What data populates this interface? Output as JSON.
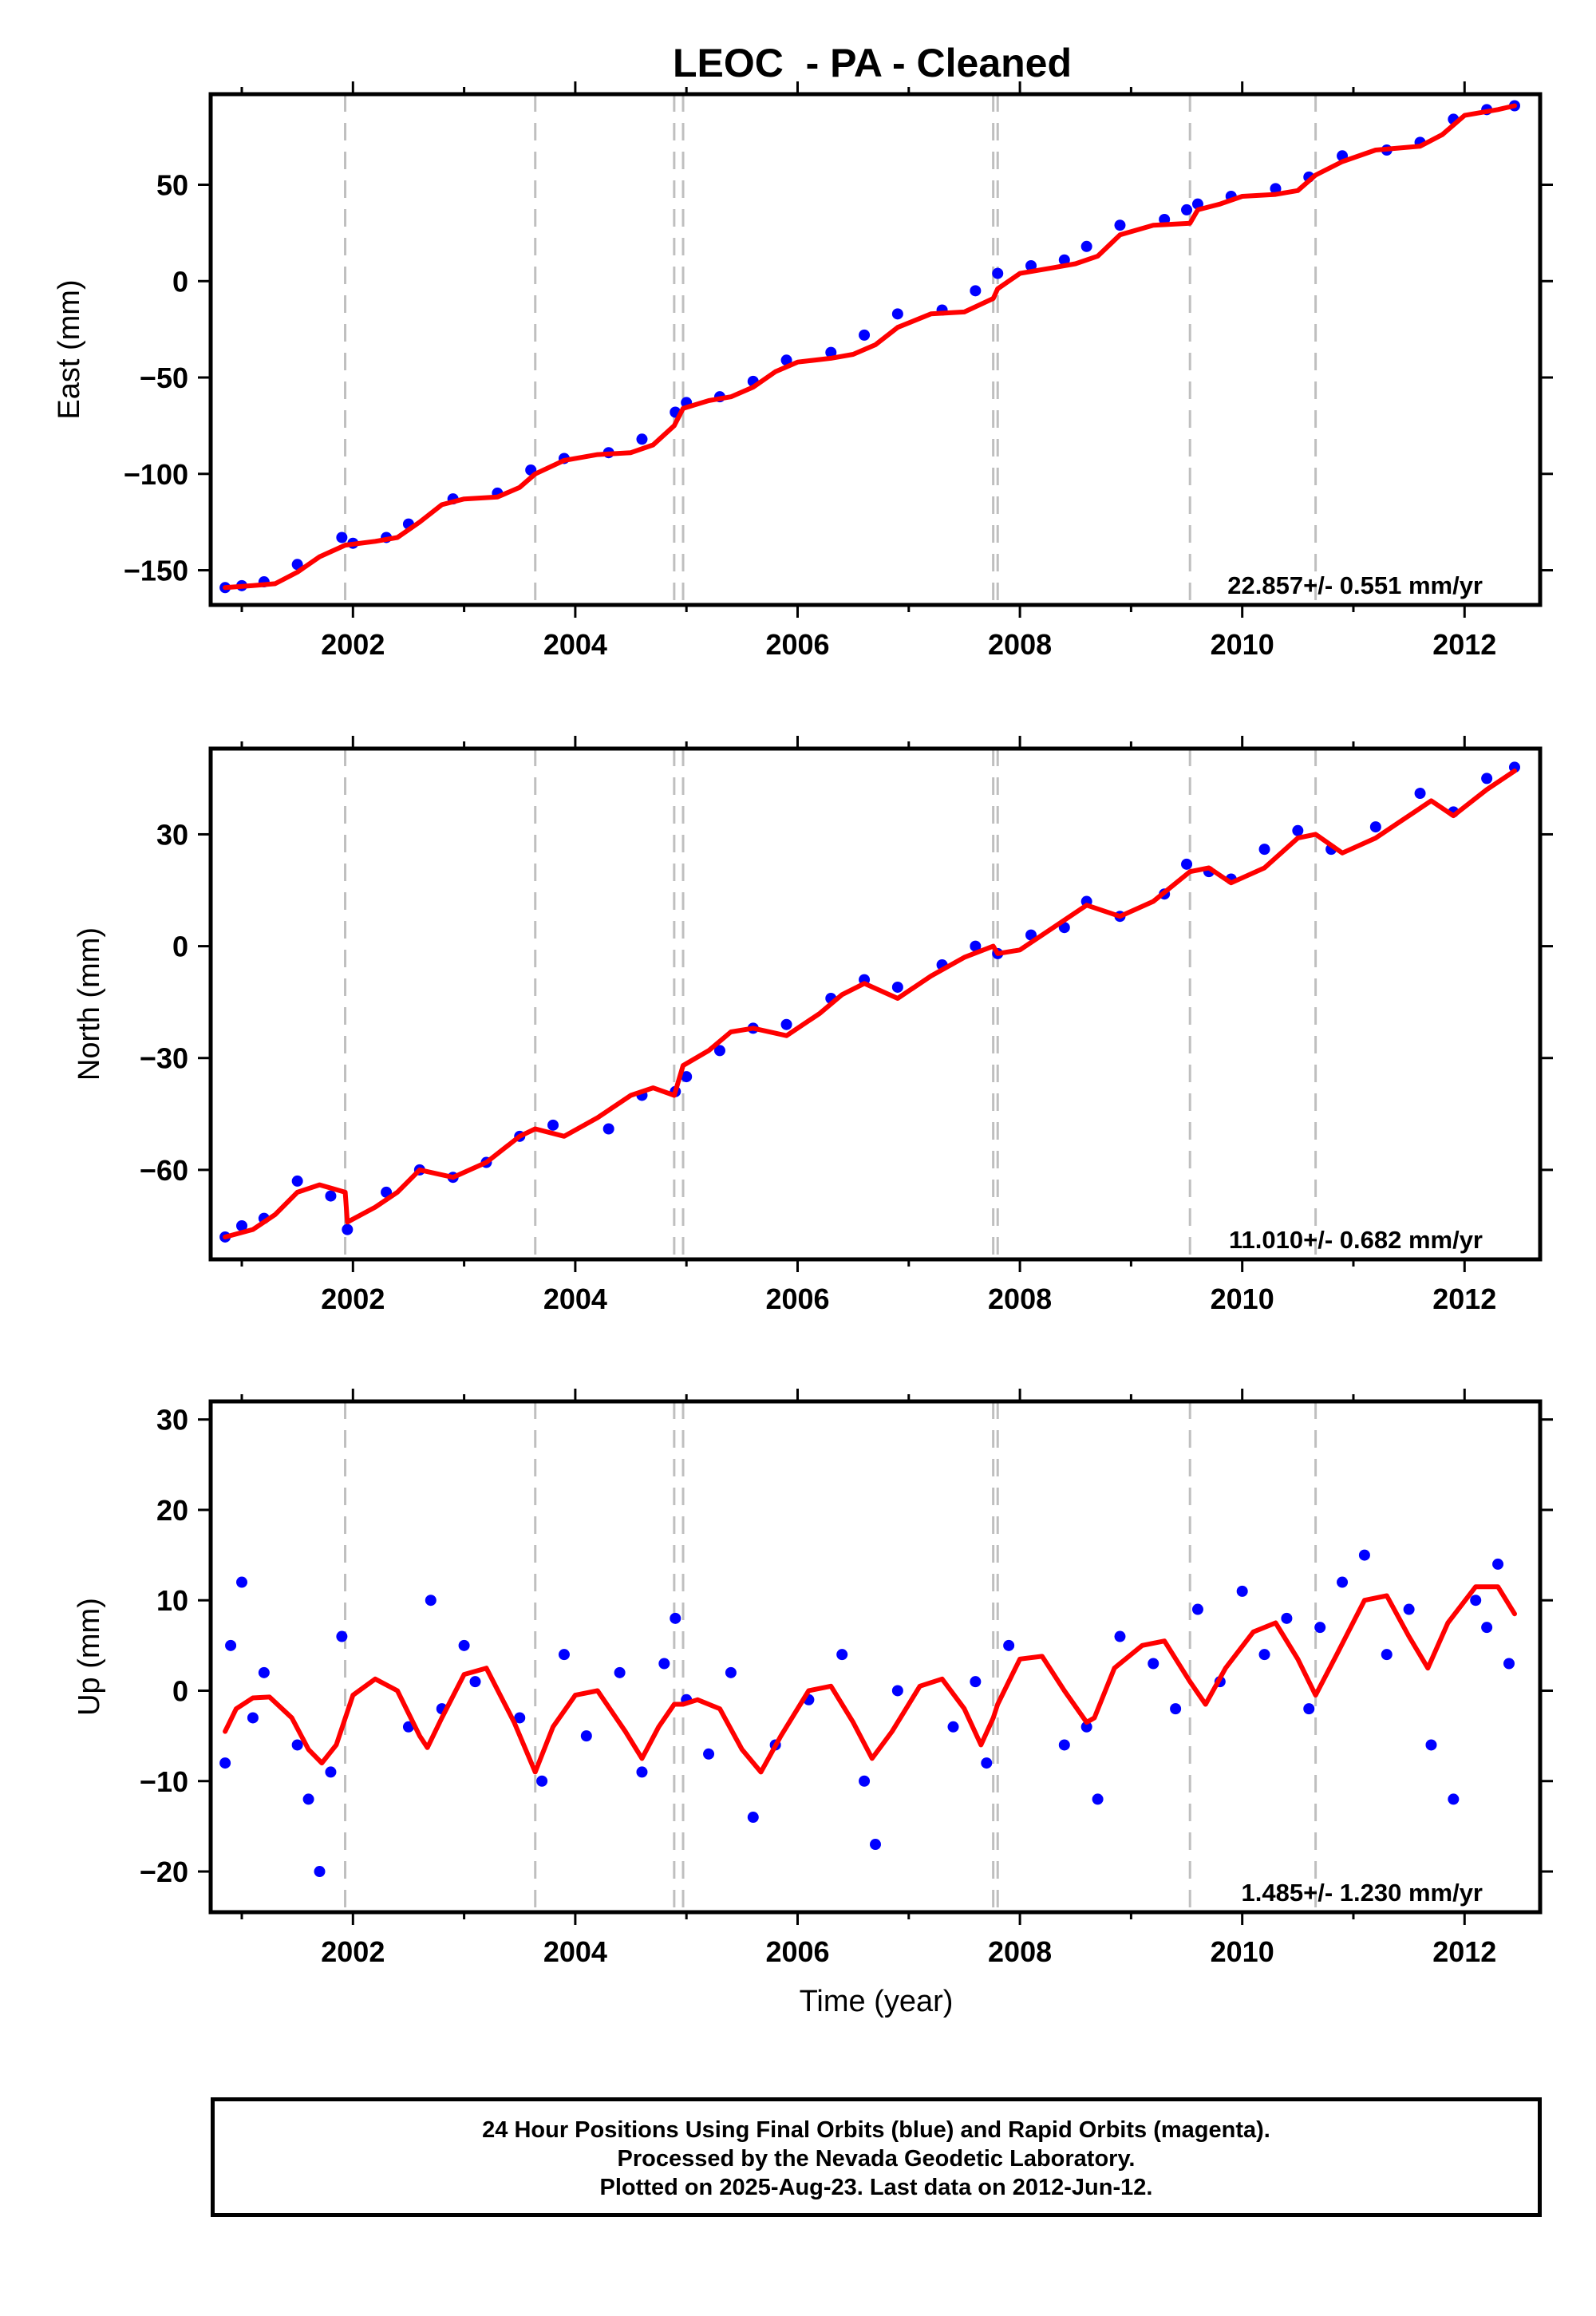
{
  "title": "LEOC  - PA - Cleaned",
  "xlabel": "Time (year)",
  "footer": {
    "lines": [
      "24 Hour Positions Using Final Orbits (blue) and Rapid Orbits (magenta).",
      "Processed by the Nevada Geodetic Laboratory.",
      "Plotted on 2025-Aug-23. Last data on 2012-Jun-12."
    ]
  },
  "colors": {
    "points": "#0000ff",
    "model": "#ff0000",
    "breaks": "#bfbfbf"
  },
  "chart_data": [
    {
      "type": "scatter",
      "name": "east",
      "ylabel": "East (mm)",
      "xlim": [
        2000.72,
        2012.68
      ],
      "ylim": [
        -168,
        97
      ],
      "xticks": [
        2002,
        2004,
        2006,
        2008,
        2010,
        2012
      ],
      "yticks": [
        -150,
        -100,
        -50,
        0,
        50
      ],
      "rate_label": "22.857+/- 0.551 mm/yr",
      "breaks": [
        2001.93,
        2003.64,
        2004.89,
        2004.97,
        2007.76,
        2007.8,
        2009.53,
        2010.66
      ],
      "x": [
        2000.85,
        2001.0,
        2001.2,
        2001.5,
        2001.9,
        2002.0,
        2002.3,
        2002.5,
        2002.9,
        2003.3,
        2003.6,
        2003.9,
        2004.3,
        2004.6,
        2004.9,
        2005.0,
        2005.3,
        2005.6,
        2005.9,
        2006.3,
        2006.6,
        2006.9,
        2007.3,
        2007.6,
        2007.8,
        2008.1,
        2008.4,
        2008.6,
        2008.9,
        2009.3,
        2009.5,
        2009.6,
        2009.9,
        2010.3,
        2010.6,
        2010.9,
        2011.3,
        2011.6,
        2011.9,
        2012.2,
        2012.45
      ],
      "y": [
        -159,
        -158,
        -156,
        -147,
        -133,
        -136,
        -133,
        -126,
        -113,
        -110,
        -98,
        -92,
        -89,
        -82,
        -68,
        -63,
        -60,
        -52,
        -41,
        -37,
        -28,
        -17,
        -15,
        -5,
        4,
        8,
        11,
        18,
        29,
        32,
        37,
        40,
        44,
        48,
        54,
        65,
        68,
        72,
        84,
        89,
        91
      ],
      "model_x": [
        2000.85,
        2001.1,
        2001.3,
        2001.5,
        2001.7,
        2001.93,
        2002.2,
        2002.4,
        2002.6,
        2002.8,
        2003.0,
        2003.3,
        2003.5,
        2003.64,
        2003.9,
        2004.2,
        2004.5,
        2004.7,
        2004.89,
        2004.97,
        2005.2,
        2005.4,
        2005.6,
        2005.8,
        2006.0,
        2006.3,
        2006.5,
        2006.7,
        2006.9,
        2007.2,
        2007.5,
        2007.76,
        2007.8,
        2008.0,
        2008.3,
        2008.5,
        2008.7,
        2008.9,
        2009.2,
        2009.53,
        2009.6,
        2009.8,
        2010.0,
        2010.3,
        2010.5,
        2010.66,
        2010.9,
        2011.2,
        2011.4,
        2011.6,
        2011.8,
        2012.0,
        2012.3,
        2012.45
      ],
      "model_y": [
        -159,
        -158,
        -157,
        -151,
        -143,
        -137,
        -135,
        -133,
        -125,
        -116,
        -113,
        -112,
        -107,
        -100,
        -93,
        -90,
        -89,
        -85,
        -75,
        -66,
        -62,
        -60,
        -55,
        -47,
        -42,
        -40,
        -38,
        -33,
        -24,
        -17,
        -16,
        -9,
        -4,
        4,
        7,
        9,
        13,
        24,
        29,
        30,
        37,
        40,
        44,
        45,
        47,
        55,
        62,
        68,
        69,
        70,
        76,
        86,
        89,
        91
      ]
    },
    {
      "type": "scatter",
      "name": "north",
      "ylabel": "North (mm)",
      "xlim": [
        2000.72,
        2012.68
      ],
      "ylim": [
        -84,
        53
      ],
      "xticks": [
        2002,
        2004,
        2006,
        2008,
        2010,
        2012
      ],
      "yticks": [
        -60,
        -30,
        0,
        30
      ],
      "rate_label": "11.010+/- 0.682 mm/yr",
      "breaks": [
        2001.93,
        2003.64,
        2004.89,
        2004.97,
        2007.76,
        2007.8,
        2009.53,
        2010.66
      ],
      "x": [
        2000.85,
        2001.0,
        2001.2,
        2001.5,
        2001.8,
        2001.95,
        2002.3,
        2002.6,
        2002.9,
        2003.2,
        2003.5,
        2003.8,
        2004.3,
        2004.6,
        2004.9,
        2005.0,
        2005.3,
        2005.6,
        2005.9,
        2006.3,
        2006.6,
        2006.9,
        2007.3,
        2007.6,
        2007.8,
        2008.1,
        2008.4,
        2008.6,
        2008.9,
        2009.3,
        2009.5,
        2009.7,
        2009.9,
        2010.2,
        2010.5,
        2010.8,
        2011.2,
        2011.6,
        2011.9,
        2012.2,
        2012.45
      ],
      "y": [
        -78,
        -75,
        -73,
        -63,
        -67,
        -76,
        -66,
        -60,
        -62,
        -58,
        -51,
        -48,
        -49,
        -40,
        -39,
        -35,
        -28,
        -22,
        -21,
        -14,
        -9,
        -11,
        -5,
        0,
        -2,
        3,
        5,
        12,
        8,
        14,
        22,
        20,
        18,
        26,
        31,
        26,
        32,
        41,
        36,
        45,
        48
      ],
      "model_x": [
        2000.85,
        2001.1,
        2001.3,
        2001.5,
        2001.7,
        2001.93,
        2001.95,
        2002.2,
        2002.4,
        2002.6,
        2002.9,
        2003.2,
        2003.5,
        2003.64,
        2003.9,
        2004.2,
        2004.5,
        2004.7,
        2004.89,
        2004.97,
        2005.2,
        2005.4,
        2005.6,
        2005.9,
        2006.2,
        2006.4,
        2006.6,
        2006.9,
        2007.2,
        2007.5,
        2007.76,
        2007.8,
        2008.0,
        2008.3,
        2008.6,
        2008.9,
        2009.2,
        2009.53,
        2009.7,
        2009.9,
        2010.2,
        2010.5,
        2010.66,
        2010.9,
        2011.2,
        2011.4,
        2011.7,
        2011.9,
        2012.2,
        2012.45
      ],
      "model_y": [
        -78,
        -76,
        -72,
        -66,
        -64,
        -66,
        -74,
        -70,
        -66,
        -60,
        -62,
        -58,
        -51,
        -49,
        -51,
        -46,
        -40,
        -38,
        -40,
        -32,
        -28,
        -23,
        -22,
        -24,
        -18,
        -13,
        -10,
        -14,
        -8,
        -3,
        0,
        -2,
        -1,
        5,
        11,
        8,
        12,
        20,
        21,
        17,
        21,
        29,
        30,
        25,
        29,
        33,
        39,
        35,
        42,
        47
      ]
    },
    {
      "type": "scatter",
      "name": "up",
      "ylabel": "Up (mm)",
      "xlim": [
        2000.72,
        2012.68
      ],
      "ylim": [
        -24.5,
        32
      ],
      "xticks": [
        2002,
        2004,
        2006,
        2008,
        2010,
        2012
      ],
      "yticks": [
        -20,
        -10,
        0,
        10,
        20,
        30
      ],
      "rate_label": "1.485+/- 1.230 mm/yr",
      "breaks": [
        2001.93,
        2003.64,
        2004.89,
        2004.97,
        2007.76,
        2007.8,
        2009.53,
        2010.66
      ],
      "x": [
        2000.85,
        2000.9,
        2001.0,
        2001.1,
        2001.2,
        2001.5,
        2001.6,
        2001.7,
        2001.8,
        2001.9,
        2002.5,
        2002.7,
        2002.8,
        2003.0,
        2003.1,
        2003.5,
        2003.7,
        2003.9,
        2004.1,
        2004.4,
        2004.6,
        2004.8,
        2004.9,
        2005.0,
        2005.2,
        2005.4,
        2005.6,
        2005.8,
        2006.1,
        2006.4,
        2006.6,
        2006.7,
        2006.9,
        2007.4,
        2007.6,
        2007.7,
        2007.9,
        2008.4,
        2008.6,
        2008.7,
        2008.9,
        2009.2,
        2009.4,
        2009.6,
        2009.8,
        2010.0,
        2010.2,
        2010.4,
        2010.6,
        2010.7,
        2010.9,
        2011.1,
        2011.3,
        2011.5,
        2011.7,
        2011.9,
        2012.1,
        2012.2,
        2012.3,
        2012.4
      ],
      "y": [
        -8,
        5,
        12,
        -3,
        2,
        -6,
        -12,
        -20,
        -9,
        6,
        -4,
        10,
        -2,
        5,
        1,
        -3,
        -10,
        4,
        -5,
        2,
        -9,
        3,
        8,
        -1,
        -7,
        2,
        -14,
        -6,
        -1,
        4,
        -10,
        -17,
        0,
        -4,
        1,
        -8,
        5,
        -6,
        -4,
        -12,
        6,
        3,
        -2,
        9,
        1,
        11,
        4,
        8,
        -2,
        7,
        12,
        15,
        4,
        9,
        -6,
        -12,
        10,
        7,
        14,
        3
      ],
      "model_x": [
        2000.85,
        2000.95,
        2001.1,
        2001.25,
        2001.45,
        2001.6,
        2001.72,
        2001.85,
        2002.0,
        2002.2,
        2002.4,
        2002.6,
        2002.67,
        2002.8,
        2003.0,
        2003.2,
        2003.45,
        2003.64,
        2003.8,
        2004.0,
        2004.2,
        2004.45,
        2004.6,
        2004.75,
        2004.89,
        2004.97,
        2005.1,
        2005.3,
        2005.5,
        2005.67,
        2005.85,
        2006.1,
        2006.3,
        2006.5,
        2006.67,
        2006.85,
        2007.1,
        2007.3,
        2007.5,
        2007.65,
        2007.76,
        2007.8,
        2008.0,
        2008.2,
        2008.4,
        2008.6,
        2008.67,
        2008.85,
        2009.1,
        2009.3,
        2009.53,
        2009.67,
        2009.85,
        2010.1,
        2010.3,
        2010.5,
        2010.66,
        2010.85,
        2011.1,
        2011.3,
        2011.5,
        2011.67,
        2011.85,
        2012.1,
        2012.3,
        2012.45
      ],
      "model_y": [
        -4.5,
        -2.0,
        -0.8,
        -0.7,
        -3.0,
        -6.5,
        -8.0,
        -6.0,
        -0.5,
        1.3,
        0.0,
        -5.0,
        -6.3,
        -3.0,
        1.8,
        2.5,
        -3.5,
        -9.0,
        -4.0,
        -0.5,
        0.0,
        -4.5,
        -7.5,
        -4.0,
        -1.5,
        -1.5,
        -1.0,
        -2.0,
        -6.5,
        -9.0,
        -5.0,
        0.0,
        0.5,
        -3.5,
        -7.5,
        -4.5,
        0.5,
        1.3,
        -2.0,
        -6.0,
        -3.0,
        -1.5,
        3.5,
        3.8,
        0.0,
        -3.5,
        -3.0,
        2.5,
        5.0,
        5.5,
        1.0,
        -1.5,
        2.5,
        6.5,
        7.5,
        3.5,
        -0.5,
        4.0,
        10.0,
        10.5,
        6.0,
        2.5,
        7.5,
        11.5,
        11.5,
        8.5
      ]
    }
  ]
}
